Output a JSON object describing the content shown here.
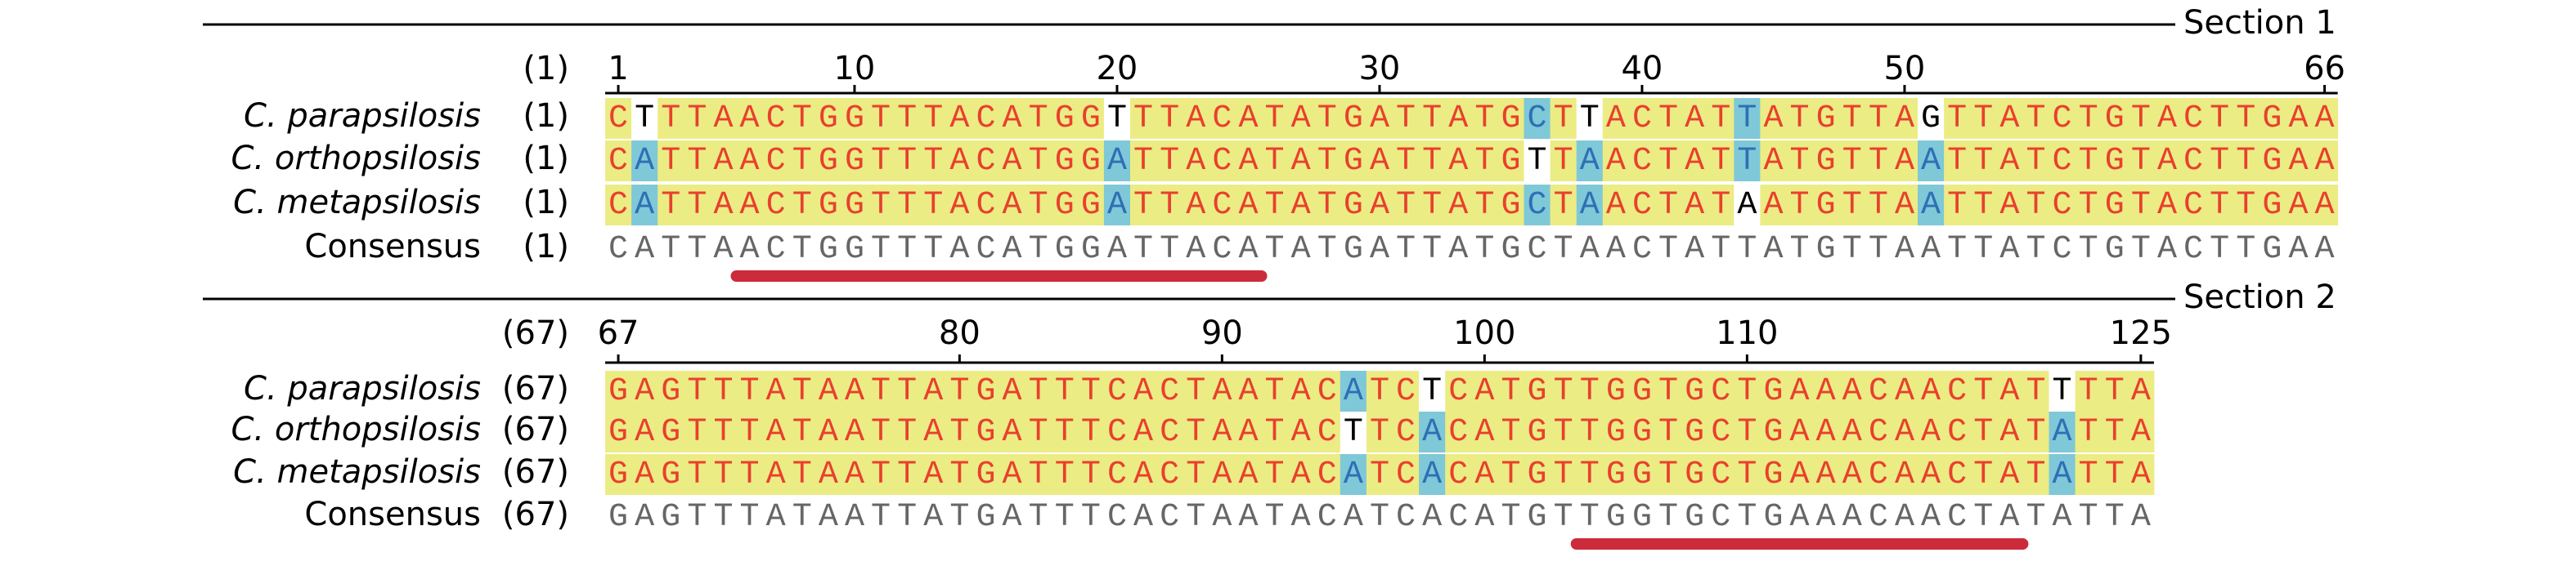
{
  "sections": [
    {
      "label": "Section 1",
      "ruler_start": "(1)",
      "ticks": [
        1,
        10,
        20,
        30,
        40,
        50,
        66
      ],
      "rows": [
        {
          "name": "C. parapsilosis",
          "start": "(1)",
          "sequence": "CTTTAACTGGTTTACATGGTTTACATATGATTATGCTTACTATTATGTTAGTTATCTGTACTTGAA"
        },
        {
          "name": "C. orthopsilosis",
          "start": "(1)",
          "sequence": "CATTAACTGGTTTACATGGATTACATATGATTATGTTAACTATTATGTTAATTATCTGTACTTGAA"
        },
        {
          "name": "C. metapsilosis",
          "start": "(1)",
          "sequence": "CATTAACTGGTTTACATGGATTACATATGATTATGCTAACTATAATGTTAATTATCTGTACTTGAA"
        }
      ],
      "consensus": {
        "name": "Consensus",
        "start": "(1)",
        "sequence": "CATTAACTGGTTTACATGGATTACATATGATTATGCTAACTATTATGTTAATTATCTGTACTTGAA"
      },
      "underline": [
        6,
        25
      ]
    },
    {
      "label": "Section 2",
      "ruler_start": "(67)",
      "ticks": [
        67,
        80,
        90,
        100,
        110,
        125
      ],
      "rows": [
        {
          "name": "C. parapsilosis",
          "start": "(67)",
          "sequence": "GAGTTTATAATTATGATTTCACTAATACATCTCATGTTGGTGCTGAAACAACTATTTTA"
        },
        {
          "name": "C. orthopsilosis",
          "start": "(67)",
          "sequence": "GAGTTTATAATTATGATTTCACTAATACTTCACATGTTGGTGCTGAAACAACTATATTA"
        },
        {
          "name": "C. metapsilosis",
          "start": "(67)",
          "sequence": "GAGTTTATAATTATGATTTCACTAATACATCACATGTTGGTGCTGAAACAACTATATTA"
        }
      ],
      "consensus": {
        "name": "Consensus",
        "start": "(67)",
        "sequence": "GAGTTTATAATTATGATTTCACTAATACATCACATGTTGGTGCTGAAACAACTATATTA"
      },
      "underline": [
        104,
        120
      ]
    }
  ]
}
